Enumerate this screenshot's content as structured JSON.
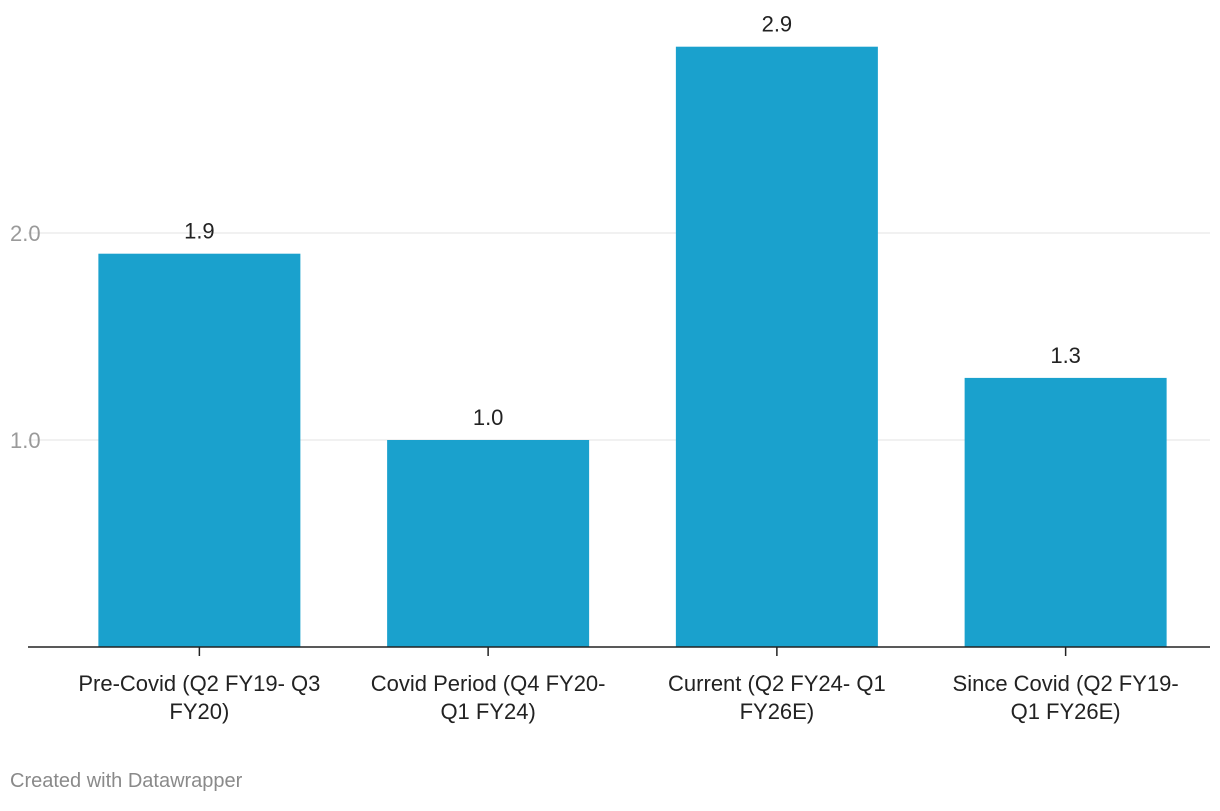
{
  "chart_data": {
    "type": "bar",
    "categories": [
      [
        "Pre-Covid (Q2 FY19- Q3",
        "FY20)"
      ],
      [
        "Covid Period (Q4 FY20-",
        "Q1 FY24)"
      ],
      [
        "Current (Q2 FY24- Q1",
        "FY26E)"
      ],
      [
        "Since Covid (Q2 FY19-",
        "Q1 FY26E)"
      ]
    ],
    "values": [
      1.9,
      1.0,
      2.9,
      1.3
    ],
    "value_labels": [
      "1.9",
      "1.0",
      "2.9",
      "1.3"
    ],
    "y_ticks": [
      {
        "value": 1.0,
        "label": "1.0"
      },
      {
        "value": 2.0,
        "label": "2.0"
      }
    ],
    "ylim": [
      0,
      3.0
    ],
    "grid": true,
    "bar_color": "#1aa1cd",
    "grid_color": "#e3e3e3",
    "axis_color": "#222222",
    "tick_label_color": "#9a9a9a",
    "label_color": "#222222"
  },
  "footer": {
    "credit": "Created with Datawrapper"
  }
}
